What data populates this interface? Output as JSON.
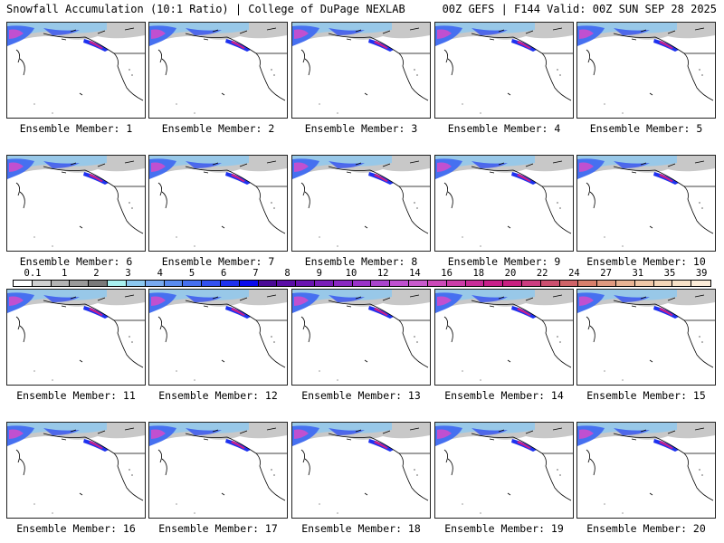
{
  "header": {
    "title_left": "Snowfall Accumulation (10:1 Ratio) | College of DuPage NEXLAB",
    "title_right": "00Z GEFS | F144 Valid: 00Z SUN SEP 28 2025"
  },
  "panels": [
    {
      "label": "Ensemble Member: 1"
    },
    {
      "label": "Ensemble Member: 2"
    },
    {
      "label": "Ensemble Member: 3"
    },
    {
      "label": "Ensemble Member: 4"
    },
    {
      "label": "Ensemble Member: 5"
    },
    {
      "label": "Ensemble Member: 6"
    },
    {
      "label": "Ensemble Member: 7"
    },
    {
      "label": "Ensemble Member: 8"
    },
    {
      "label": "Ensemble Member: 9"
    },
    {
      "label": "Ensemble Member: 10"
    },
    {
      "label": "Ensemble Member: 11"
    },
    {
      "label": "Ensemble Member: 12"
    },
    {
      "label": "Ensemble Member: 13"
    },
    {
      "label": "Ensemble Member: 14"
    },
    {
      "label": "Ensemble Member: 15"
    },
    {
      "label": "Ensemble Member: 16"
    },
    {
      "label": "Ensemble Member: 17"
    },
    {
      "label": "Ensemble Member: 18"
    },
    {
      "label": "Ensemble Member: 19"
    },
    {
      "label": "Ensemble Member: 20"
    }
  ],
  "colorbar": {
    "tick_labels": [
      "0.1",
      "1",
      "2",
      "3",
      "4",
      "5",
      "6",
      "7",
      "8",
      "9",
      "10",
      "12",
      "14",
      "16",
      "18",
      "20",
      "22",
      "24",
      "27",
      "31",
      "35",
      "39"
    ],
    "colors": [
      "#ffffff",
      "#d0d0d0",
      "#b4b4b4",
      "#9a9a9a",
      "#7a7a7a",
      "#a8f0f0",
      "#8cc8f0",
      "#78aaf0",
      "#5a8cf0",
      "#4670f0",
      "#3250f0",
      "#1e32f0",
      "#0a0aee",
      "#4a0a96",
      "#5a0ea6",
      "#6a14b0",
      "#7a1eb8",
      "#8a28c0",
      "#9a32c8",
      "#aa44cc",
      "#c050d0",
      "#c85acc",
      "#cc4ab8",
      "#cc3ca8",
      "#c82c98",
      "#c8208a",
      "#c82080",
      "#cc3c80",
      "#cc5070",
      "#d06468",
      "#d8806c",
      "#e09a80",
      "#e8b494",
      "#f0c8a8",
      "#f4d6b8",
      "#f8e2c8",
      "#fcecd8"
    ]
  }
}
